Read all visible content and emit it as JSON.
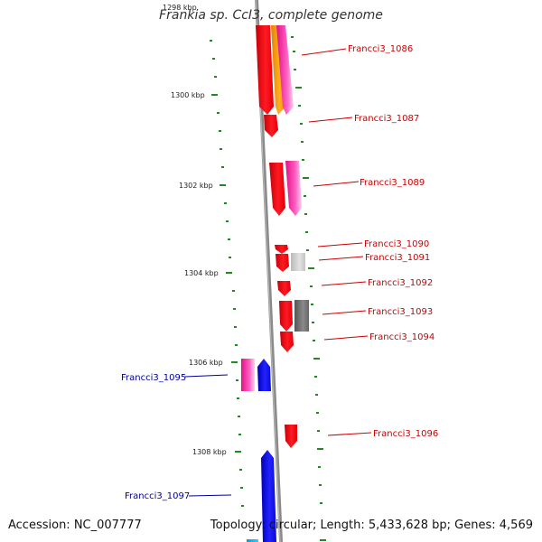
{
  "title": "Frankia sp. CcI3, complete genome",
  "top_tick": "1298 kbp",
  "ticks": [
    "1300 kbp",
    "1302 kbp",
    "1304 kbp",
    "1306 kbp",
    "1308 kbp"
  ],
  "genes_right": [
    "Francci3_1086",
    "Francci3_1087",
    "Francci3_1089",
    "Francci3_1090",
    "Francci3_1091",
    "Francci3_1092",
    "Francci3_1093",
    "Francci3_1094",
    "Francci3_1096"
  ],
  "genes_left": [
    "Francci3_1095",
    "Francci3_1097"
  ],
  "accession": "Accession: NC_007777",
  "topology": "Topology: circular; Length: 5,433,628 bp; Genes: 4,569",
  "colors": {
    "forward_gene": "#e8000b",
    "reverse_gene": "#1010dd",
    "magenta_gene": "#ee2a9a",
    "orange_gene": "#f59a10",
    "grey_gene": "#6a6a6a",
    "light_grey_gene": "#c8c8c8",
    "label_right": "#cc0000",
    "label_left": "#000099",
    "scale_dash": "#228822",
    "backbone": "#8a8a8a"
  }
}
